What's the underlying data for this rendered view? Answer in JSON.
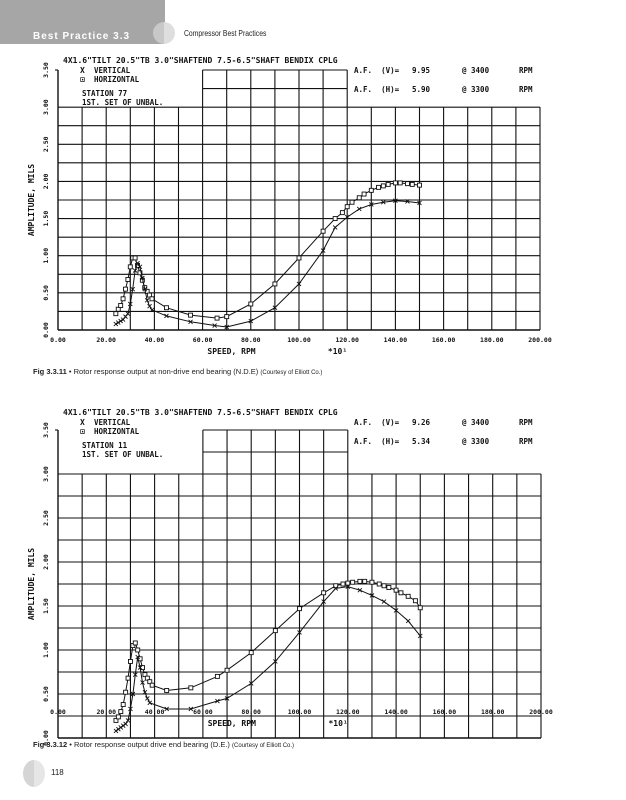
{
  "header": {
    "section": "Best Practice 3.3",
    "running_title": "Compressor Best Practices"
  },
  "figures": [
    {
      "caption_num": "Fig 3.3.11",
      "caption_bullet": "•",
      "caption_text": "Rotor response output at non-drive end bearing (N.D.E)",
      "caption_credit": "(Courtesy of Elliott Co.)"
    },
    {
      "caption_num": "Fig 3.3.12",
      "caption_bullet": "•",
      "caption_text": "Rotor response output drive end bearing (D.E.)",
      "caption_credit": "(Courtesy of Elliott Co.)"
    }
  ],
  "page_number": "118",
  "chart_data": [
    {
      "type": "line",
      "title": "4X1.6\"TILT 20.5\"TB 3.0\"SHAFTEND 7.5-6.5\"SHAFT BENDIX CPLG",
      "legend": [
        {
          "symbol": "X",
          "name": "VERTICAL"
        },
        {
          "symbol": "⊡",
          "name": "HORIZONTAL"
        }
      ],
      "station": "STATION 77",
      "unbal": "1ST. SET OF UNBAL.",
      "af": [
        {
          "label": "A.F.  (V)=",
          "value": "9.95",
          "speed": "@ 3400",
          "unit": "RPM"
        },
        {
          "label": "A.F.  (H)=",
          "value": "5.90",
          "speed": "@ 3300",
          "unit": "RPM"
        }
      ],
      "xlabel": "SPEED, RPM",
      "xlabel_mult": "*10¹",
      "ylabel": "AMPLITUDE, MILS",
      "xlim": [
        0,
        200
      ],
      "ylim": [
        0,
        3.5
      ],
      "grid": true,
      "xticks": [
        "0.00",
        "20.00",
        "40.00",
        "60.00",
        "80.00",
        "100.00",
        "120.00",
        "140.00",
        "160.00",
        "180.00",
        "200.00"
      ],
      "yticks": [
        "0.00",
        "0.50",
        "1.00",
        "1.50",
        "2.00",
        "2.50",
        "3.00",
        "3.50"
      ],
      "series": [
        {
          "name": "HORIZONTAL",
          "marker": "square",
          "x": [
            24,
            25,
            26,
            27,
            28,
            29,
            30,
            31,
            32,
            33,
            34,
            35,
            36,
            37,
            38,
            39,
            45,
            55,
            66,
            70,
            80,
            90,
            100,
            110,
            115,
            118,
            120,
            122,
            125,
            127,
            130,
            133,
            135,
            137,
            140,
            142,
            145,
            147,
            150
          ],
          "y": [
            0.22,
            0.28,
            0.33,
            0.42,
            0.55,
            0.68,
            0.85,
            0.97,
            0.97,
            0.87,
            0.77,
            0.67,
            0.57,
            0.52,
            0.47,
            0.42,
            0.3,
            0.2,
            0.16,
            0.18,
            0.35,
            0.62,
            0.97,
            1.33,
            1.5,
            1.58,
            1.66,
            1.72,
            1.78,
            1.83,
            1.88,
            1.92,
            1.94,
            1.96,
            1.98,
            1.98,
            1.97,
            1.96,
            1.95
          ]
        },
        {
          "name": "VERTICAL",
          "marker": "x",
          "x": [
            24,
            25,
            26,
            27,
            28,
            29,
            30,
            31,
            32,
            33,
            34,
            35,
            36,
            37,
            38,
            39,
            45,
            55,
            65,
            70,
            80,
            90,
            100,
            110,
            115,
            120,
            125,
            130,
            135,
            140,
            145,
            150
          ],
          "y": [
            0.08,
            0.1,
            0.12,
            0.14,
            0.18,
            0.22,
            0.35,
            0.55,
            0.8,
            0.9,
            0.85,
            0.7,
            0.55,
            0.4,
            0.32,
            0.27,
            0.19,
            0.11,
            0.06,
            0.04,
            0.12,
            0.3,
            0.62,
            1.07,
            1.38,
            1.52,
            1.63,
            1.69,
            1.72,
            1.74,
            1.73,
            1.71
          ]
        }
      ]
    },
    {
      "type": "line",
      "title": "4X1.6\"TILT 20.5\"TB 3.0\"SHAFTEND 7.5-6.5\"SHAFT BENDIX CPLG",
      "legend": [
        {
          "symbol": "X",
          "name": "VERTICAL"
        },
        {
          "symbol": "⊡",
          "name": "HORIZONTAL"
        }
      ],
      "station": "STATION 11",
      "unbal": "1ST. SET OF UNBAL.",
      "af": [
        {
          "label": "A.F.  (V)=",
          "value": "9.26",
          "speed": "@ 3400",
          "unit": "RPM"
        },
        {
          "label": "A.F.  (H)=",
          "value": "5.34",
          "speed": "@ 3300",
          "unit": "RPM"
        }
      ],
      "xlabel": "SPEED, RPM",
      "xlabel_mult": "*10¹",
      "ylabel": "AMPLITUDE, MILS",
      "xlim": [
        0,
        200
      ],
      "ylim": [
        0,
        3.5
      ],
      "grid": true,
      "xticks": [
        "0.00",
        "20.00",
        "40.00",
        "60.00",
        "80.00",
        "100.00",
        "120.00",
        "140.00",
        "160.00",
        "180.00",
        "200.00"
      ],
      "yticks": [
        "0.00",
        "0.50",
        "1.00",
        "1.50",
        "2.00",
        "2.50",
        "3.00",
        "3.50"
      ],
      "series": [
        {
          "name": "HORIZONTAL",
          "marker": "square",
          "x": [
            24,
            25,
            26,
            27,
            28,
            29,
            30,
            31,
            32,
            33,
            34,
            35,
            36,
            37,
            38,
            39,
            45,
            55,
            66,
            70,
            80,
            90,
            100,
            110,
            115,
            118,
            120,
            122,
            125,
            127,
            130,
            133,
            135,
            137,
            140,
            142,
            145,
            148,
            150
          ],
          "y": [
            0.2,
            0.24,
            0.3,
            0.38,
            0.52,
            0.68,
            0.87,
            1.05,
            1.08,
            1.0,
            0.9,
            0.8,
            0.72,
            0.68,
            0.64,
            0.6,
            0.54,
            0.57,
            0.7,
            0.77,
            0.97,
            1.22,
            1.47,
            1.65,
            1.73,
            1.75,
            1.76,
            1.77,
            1.78,
            1.78,
            1.77,
            1.75,
            1.73,
            1.71,
            1.68,
            1.65,
            1.61,
            1.56,
            1.48
          ]
        },
        {
          "name": "VERTICAL",
          "marker": "x",
          "x": [
            24,
            25,
            26,
            27,
            28,
            29,
            30,
            31,
            32,
            33,
            34,
            35,
            36,
            37,
            38,
            45,
            55,
            66,
            70,
            80,
            90,
            100,
            110,
            115,
            120,
            125,
            130,
            135,
            140,
            145,
            150
          ],
          "y": [
            0.08,
            0.1,
            0.12,
            0.14,
            0.16,
            0.2,
            0.33,
            0.5,
            0.72,
            0.92,
            0.8,
            0.63,
            0.52,
            0.45,
            0.4,
            0.33,
            0.33,
            0.42,
            0.45,
            0.62,
            0.87,
            1.2,
            1.55,
            1.7,
            1.72,
            1.68,
            1.62,
            1.55,
            1.45,
            1.33,
            1.16
          ]
        }
      ]
    }
  ]
}
